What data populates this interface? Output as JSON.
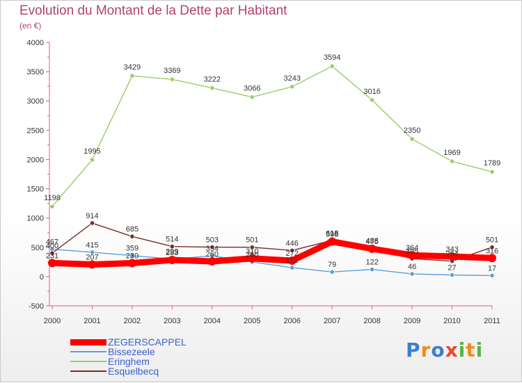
{
  "title": "Evolution du Montant de la Dette par Habitant",
  "subtitle": "(en €)",
  "brand": {
    "text": "Proxiti",
    "colors": [
      "#3a7fd0",
      "#f08c1c",
      "#3a7fd0",
      "#e84a2c",
      "#58b24a",
      "#f08c1c",
      "#58b24a"
    ]
  },
  "chart_data": {
    "type": "line",
    "title": "Evolution du Montant de la Dette par Habitant",
    "subtitle": "(en €)",
    "x": [
      "2000",
      "2001",
      "2002",
      "2003",
      "2004",
      "2005",
      "2006",
      "2007",
      "2008",
      "2009",
      "2010",
      "2011"
    ],
    "ylim": [
      -500,
      4000
    ],
    "yticks": [
      -500,
      0,
      500,
      1000,
      1500,
      2000,
      2500,
      3000,
      3500,
      4000
    ],
    "grid": false,
    "legend_position": "bottom-left",
    "series": [
      {
        "name": "ZEGERSCAPPEL",
        "color": "#ff0000",
        "values": [
          231,
          207,
          230,
          283,
          260,
          310,
          272,
          598,
          475,
          364,
          343,
          316
        ],
        "labels": [
          "231",
          "207",
          "230",
          "283",
          "260",
          "310",
          "272",
          "598",
          "475",
          "364",
          "343",
          "316"
        ]
      },
      {
        "name": "Bissezeele",
        "color": "#5a9fd4",
        "values": [
          467,
          415,
          359,
          299,
          354,
          250,
          152,
          79,
          122,
          46,
          27,
          17
        ],
        "labels": [
          "467",
          "415",
          "359",
          "299",
          "354",
          "250",
          "152",
          "79",
          "122",
          "46",
          "27",
          "17"
        ]
      },
      {
        "name": "Eringhem",
        "color": "#99cc66",
        "values": [
          1198,
          1995,
          3429,
          3369,
          3222,
          3066,
          3243,
          3594,
          3016,
          2350,
          1969,
          1789
        ],
        "labels": [
          "1198",
          "1995",
          "3429",
          "3369",
          "3222",
          "3066",
          "3243",
          "3594",
          "3016",
          "2350",
          "1969",
          "1789"
        ]
      },
      {
        "name": "Esquelbecq",
        "color": "#7a2a2a",
        "values": [
          400,
          914,
          685,
          514,
          503,
          501,
          446,
          618,
          488,
          305,
          264,
          501
        ],
        "labels": [
          "400",
          "914",
          "685",
          "514",
          "503",
          "501",
          "446",
          "618",
          "488",
          "305",
          "264",
          "501"
        ]
      }
    ]
  }
}
